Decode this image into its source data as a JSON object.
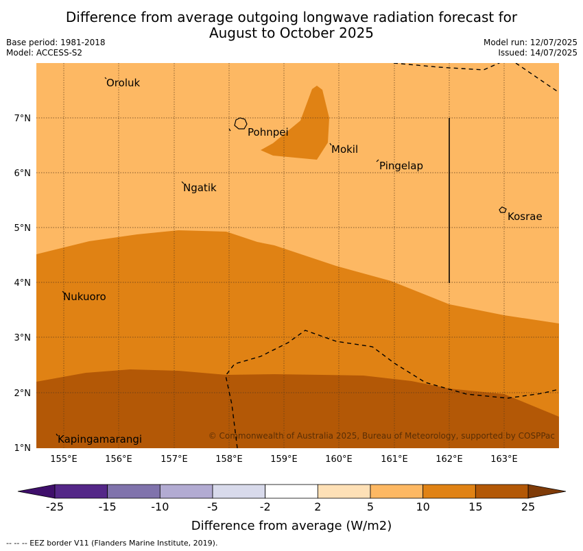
{
  "title_line1": "Difference from average outgoing longwave radiation forecast for",
  "title_line2": "August to October 2025",
  "base_period": "Base period: 1981-2018",
  "model": "Model: ACCESS-S2",
  "model_run": "Model run: 12/07/2025",
  "issued": "Issued: 14/07/2025",
  "map": {
    "lon_labels": [
      "155°E",
      "156°E",
      "157°E",
      "158°E",
      "159°E",
      "160°E",
      "161°E",
      "162°E",
      "163°E"
    ],
    "lat_labels": [
      "7°N",
      "6°N",
      "5°N",
      "4°N",
      "3°N",
      "2°N",
      "1°N"
    ],
    "places": [
      "Oroluk",
      "Pohnpei",
      "Mokil",
      "Pingelap",
      "Ngatik",
      "Kosrae",
      "Nukuoro",
      "Kapingamarangi"
    ],
    "copyright": "© Commonwealth of Australia 2025, Bureau of Meteorology, supported by COSPPac"
  },
  "colorbar": {
    "labels": [
      "-25",
      "-15",
      "-10",
      "-5",
      "-2",
      "2",
      "5",
      "10",
      "15",
      "25"
    ],
    "colors": [
      "#3f0f6b",
      "#542788",
      "#8073ac",
      "#b2abd2",
      "#d8daeb",
      "#ffffff",
      "#fee0b6",
      "#fdb863",
      "#e08214",
      "#b35806",
      "#7f3b08"
    ],
    "title": "Difference from average (W/m2)"
  },
  "footer": "--  --  -- EEZ border V11 (Flanders Marine Institute, 2019)."
}
